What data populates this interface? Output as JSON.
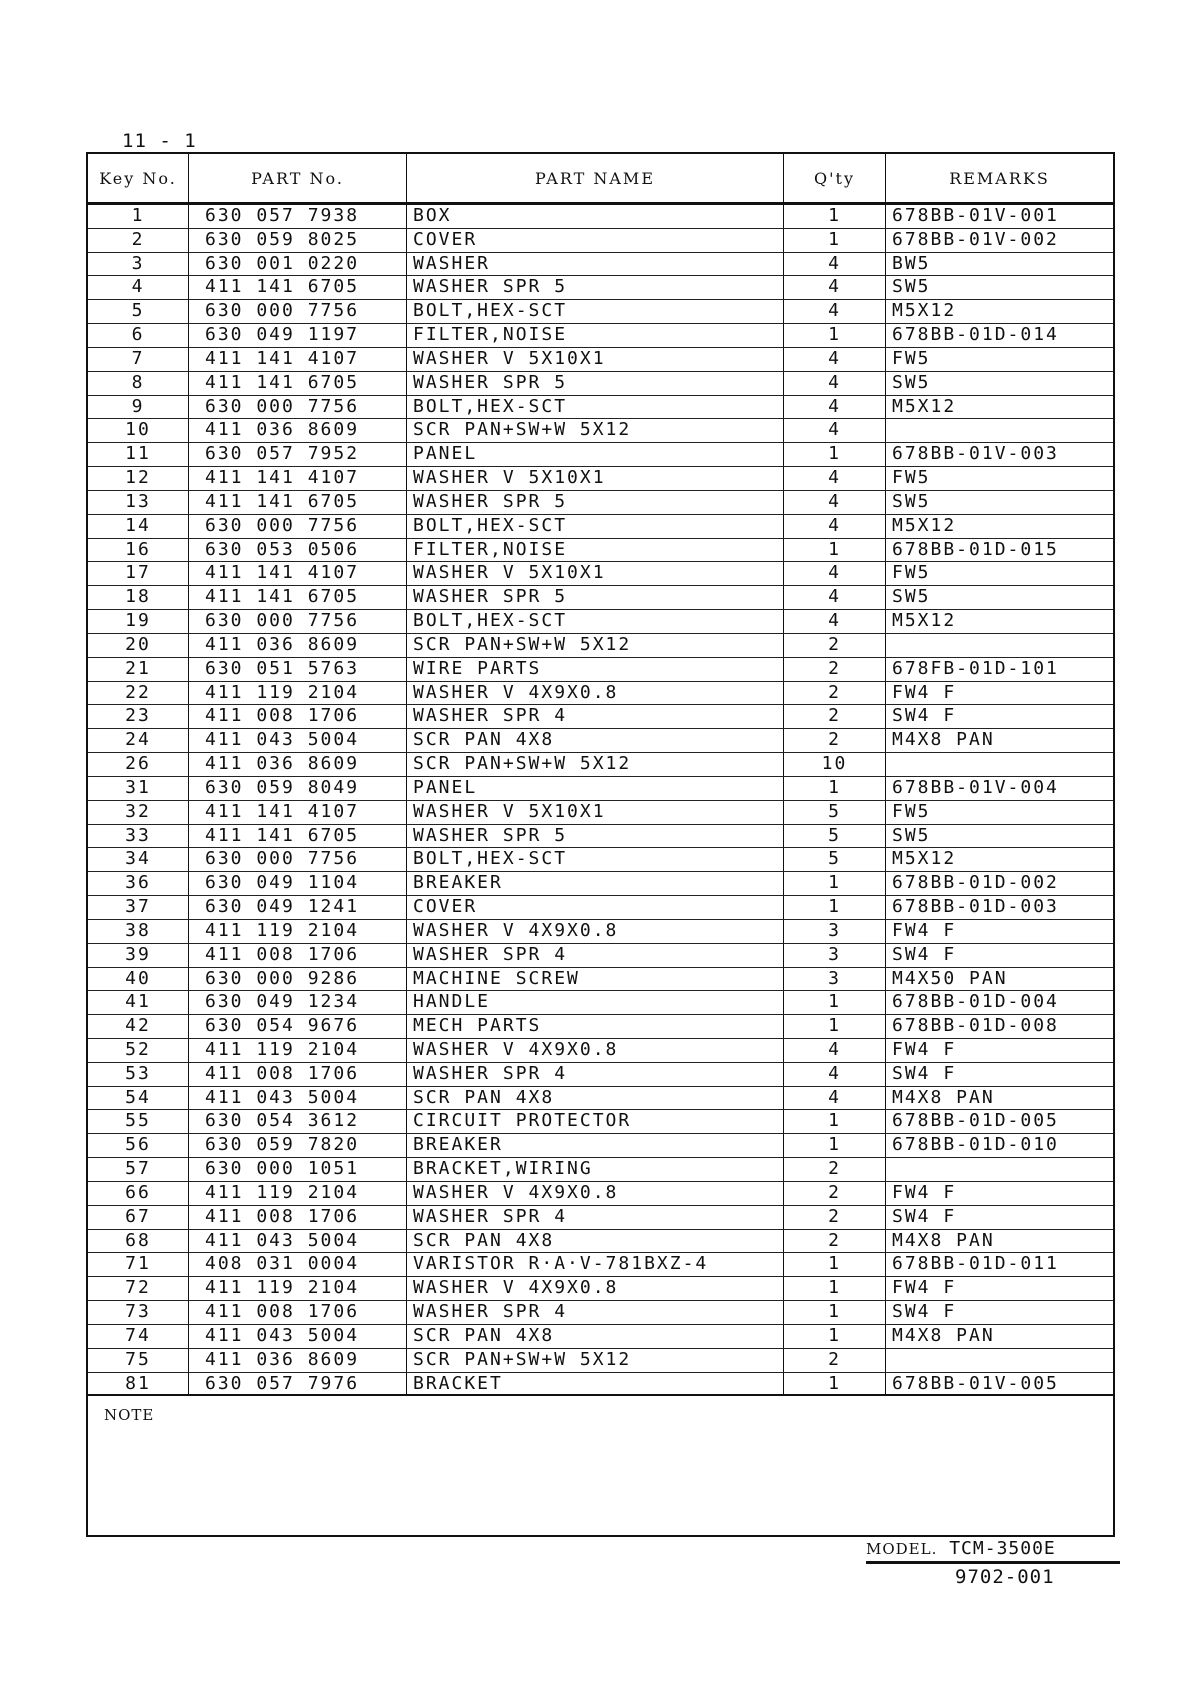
{
  "page_id": "11 - 1",
  "headers": {
    "key": "Key No.",
    "part_no": "PART No.",
    "part_name": "PART NAME",
    "qty": "Q'ty",
    "remarks": "REMARKS"
  },
  "rows": [
    [
      "1",
      "630 057 7938",
      "BOX",
      "1",
      "678BB-01V-001"
    ],
    [
      "2",
      "630 059 8025",
      "COVER",
      "1",
      "678BB-01V-002"
    ],
    [
      "3",
      "630 001 0220",
      "WASHER",
      "4",
      "BW5"
    ],
    [
      "4",
      "411 141 6705",
      "WASHER SPR 5",
      "4",
      "SW5"
    ],
    [
      "5",
      "630 000 7756",
      "BOLT,HEX-SCT",
      "4",
      "M5X12"
    ],
    [
      "6",
      "630 049 1197",
      "FILTER,NOISE",
      "1",
      "678BB-01D-014"
    ],
    [
      "7",
      "411 141 4107",
      "WASHER V 5X10X1",
      "4",
      "FW5"
    ],
    [
      "8",
      "411 141 6705",
      "WASHER SPR 5",
      "4",
      "SW5"
    ],
    [
      "9",
      "630 000 7756",
      "BOLT,HEX-SCT",
      "4",
      "M5X12"
    ],
    [
      "10",
      "411 036 8609",
      "SCR PAN+SW+W 5X12",
      "4",
      ""
    ],
    [
      "11",
      "630 057 7952",
      "PANEL",
      "1",
      "678BB-01V-003"
    ],
    [
      "12",
      "411 141 4107",
      "WASHER V 5X10X1",
      "4",
      "FW5"
    ],
    [
      "13",
      "411 141 6705",
      "WASHER SPR 5",
      "4",
      "SW5"
    ],
    [
      "14",
      "630 000 7756",
      "BOLT,HEX-SCT",
      "4",
      "M5X12"
    ],
    [
      "16",
      "630 053 0506",
      "FILTER,NOISE",
      "1",
      "678BB-01D-015"
    ],
    [
      "17",
      "411 141 4107",
      "WASHER V 5X10X1",
      "4",
      "FW5"
    ],
    [
      "18",
      "411 141 6705",
      "WASHER SPR 5",
      "4",
      "SW5"
    ],
    [
      "19",
      "630 000 7756",
      "BOLT,HEX-SCT",
      "4",
      "M5X12"
    ],
    [
      "20",
      "411 036 8609",
      "SCR PAN+SW+W 5X12",
      "2",
      ""
    ],
    [
      "21",
      "630 051 5763",
      "WIRE PARTS",
      "2",
      "678FB-01D-101"
    ],
    [
      "22",
      "411 119 2104",
      "WASHER V 4X9X0.8",
      "2",
      "FW4 F"
    ],
    [
      "23",
      "411 008 1706",
      "WASHER SPR 4",
      "2",
      "SW4 F"
    ],
    [
      "24",
      "411 043 5004",
      "SCR PAN 4X8",
      "2",
      "M4X8 PAN"
    ],
    [
      "26",
      "411 036 8609",
      "SCR PAN+SW+W 5X12",
      "10",
      ""
    ],
    [
      "31",
      "630 059 8049",
      "PANEL",
      "1",
      "678BB-01V-004"
    ],
    [
      "32",
      "411 141 4107",
      "WASHER V 5X10X1",
      "5",
      "FW5"
    ],
    [
      "33",
      "411 141 6705",
      "WASHER SPR 5",
      "5",
      "SW5"
    ],
    [
      "34",
      "630 000 7756",
      "BOLT,HEX-SCT",
      "5",
      "M5X12"
    ],
    [
      "36",
      "630 049 1104",
      "BREAKER",
      "1",
      "678BB-01D-002"
    ],
    [
      "37",
      "630 049 1241",
      "COVER",
      "1",
      "678BB-01D-003"
    ],
    [
      "38",
      "411 119 2104",
      "WASHER V 4X9X0.8",
      "3",
      "FW4 F"
    ],
    [
      "39",
      "411 008 1706",
      "WASHER SPR 4",
      "3",
      "SW4 F"
    ],
    [
      "40",
      "630 000 9286",
      "MACHINE SCREW",
      "3",
      "M4X50 PAN"
    ],
    [
      "41",
      "630 049 1234",
      "HANDLE",
      "1",
      "678BB-01D-004"
    ],
    [
      "42",
      "630 054 9676",
      "MECH PARTS",
      "1",
      "678BB-01D-008"
    ],
    [
      "52",
      "411 119 2104",
      "WASHER V 4X9X0.8",
      "4",
      "FW4 F"
    ],
    [
      "53",
      "411 008 1706",
      "WASHER SPR 4",
      "4",
      "SW4 F"
    ],
    [
      "54",
      "411 043 5004",
      "SCR PAN 4X8",
      "4",
      "M4X8 PAN"
    ],
    [
      "55",
      "630 054 3612",
      "CIRCUIT PROTECTOR",
      "1",
      "678BB-01D-005"
    ],
    [
      "56",
      "630 059 7820",
      "BREAKER",
      "1",
      "678BB-01D-010"
    ],
    [
      "57",
      "630 000 1051",
      "BRACKET,WIRING",
      "2",
      ""
    ],
    [
      "66",
      "411 119 2104",
      "WASHER V 4X9X0.8",
      "2",
      "FW4 F"
    ],
    [
      "67",
      "411 008 1706",
      "WASHER SPR 4",
      "2",
      "SW4 F"
    ],
    [
      "68",
      "411 043 5004",
      "SCR PAN 4X8",
      "2",
      "M4X8 PAN"
    ],
    [
      "71",
      "408 031 0004",
      "VARISTOR R·A·V-781BXZ-4",
      "1",
      "678BB-01D-011"
    ],
    [
      "72",
      "411 119 2104",
      "WASHER V 4X9X0.8",
      "1",
      "FW4 F"
    ],
    [
      "73",
      "411 008 1706",
      "WASHER SPR 4",
      "1",
      "SW4 F"
    ],
    [
      "74",
      "411 043 5004",
      "SCR PAN 4X8",
      "1",
      "M4X8 PAN"
    ],
    [
      "75",
      "411 036 8609",
      "SCR PAN+SW+W 5X12",
      "2",
      ""
    ],
    [
      "81",
      "630 057 7976",
      "BRACKET",
      "1",
      "678BB-01V-005"
    ]
  ],
  "note_label": "NOTE",
  "model_label": "MODEL.",
  "model": "TCM-3500E",
  "doc_number": "9702-001"
}
